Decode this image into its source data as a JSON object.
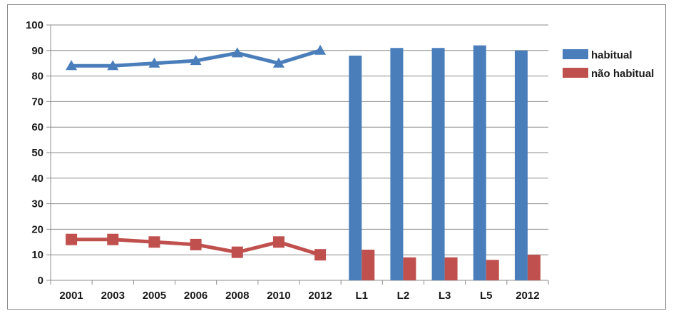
{
  "chart_data": {
    "type": "line+bar",
    "title": "",
    "xlabel": "",
    "ylabel": "",
    "ylim": [
      0,
      100
    ],
    "yticks": [
      0,
      10,
      20,
      30,
      40,
      50,
      60,
      70,
      80,
      90,
      100
    ],
    "grid": true,
    "legend_position": "right",
    "categories": [
      "2001",
      "2003",
      "2005",
      "2006",
      "2008",
      "2010",
      "2012",
      "L1",
      "L2",
      "L3",
      "L5",
      "2012"
    ],
    "line_series": [
      {
        "name": "habitual",
        "color": "#4a7ebb",
        "marker": "triangle",
        "categories": [
          "2001",
          "2003",
          "2005",
          "2006",
          "2008",
          "2010",
          "2012"
        ],
        "values": [
          84,
          84,
          85,
          86,
          89,
          85,
          90
        ]
      },
      {
        "name": "não habitual",
        "color": "#c0504d",
        "marker": "square",
        "categories": [
          "2001",
          "2003",
          "2005",
          "2006",
          "2008",
          "2010",
          "2012"
        ],
        "values": [
          16,
          16,
          15,
          14,
          11,
          15,
          10
        ]
      }
    ],
    "bar_series": [
      {
        "name": "habitual",
        "color": "#4a7ebb",
        "categories": [
          "L1",
          "L2",
          "L3",
          "L5",
          "2012"
        ],
        "values": [
          88,
          91,
          91,
          92,
          90
        ]
      },
      {
        "name": "não habitual",
        "color": "#c0504d",
        "categories": [
          "L1",
          "L2",
          "L3",
          "L5",
          "2012"
        ],
        "values": [
          12,
          9,
          9,
          8,
          10
        ]
      }
    ],
    "legend": [
      {
        "label": "habitual",
        "color": "#4a7ebb"
      },
      {
        "label": "não habitual",
        "color": "#c0504d"
      }
    ]
  }
}
